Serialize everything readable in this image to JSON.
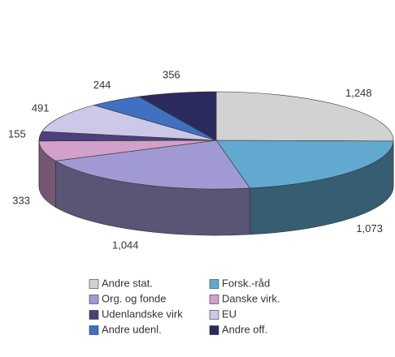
{
  "chart_data": {
    "type": "pie3d",
    "categories": [
      "Andre stat.",
      "Forsk.-råd",
      "Org. og fonde",
      "Danske virk.",
      "Udenlandske virk",
      "EU",
      "Andre udenl.",
      "Andre off."
    ],
    "values": [
      1248,
      1073,
      1044,
      333,
      155,
      491,
      244,
      356
    ],
    "value_labels": [
      "1,248",
      "1,073",
      "1,044",
      "333",
      "155",
      "491",
      "244",
      "356"
    ],
    "colors": [
      "#d2d2d2",
      "#62a9cf",
      "#a19ad2",
      "#d39fcb",
      "#4b4079",
      "#cbc8e8",
      "#4070c0",
      "#2b2a5e"
    ]
  }
}
